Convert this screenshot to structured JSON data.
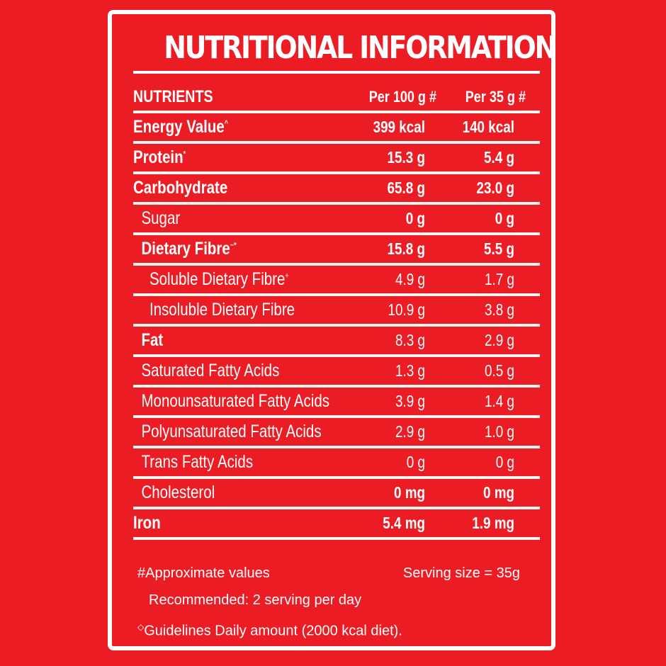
{
  "label": {
    "title": "NUTRITIONAL INFORMATION",
    "columns": {
      "nutrients": "NUTRIENTS",
      "per_100g": "Per 100 g #",
      "per_serving": "Per 35 g #"
    },
    "rows": [
      {
        "name": "Energy Value",
        "mark": "^",
        "per_100g": "399 kcal",
        "per_serving": "140 kcal",
        "style": "bold",
        "indent": 0
      },
      {
        "name": "Protein",
        "mark": "*",
        "per_100g": "15.3 g",
        "per_serving": "5.4 g",
        "style": "bold",
        "indent": 0
      },
      {
        "name": "Carbohydrate",
        "mark": "",
        "per_100g": "65.8 g",
        "per_serving": "23.0 g",
        "style": "bold",
        "indent": 0
      },
      {
        "name": "Sugar",
        "mark": "",
        "per_100g": "0 g",
        "per_serving": "0 g",
        "style": "regular",
        "indent": 1
      },
      {
        "name": "Dietary Fibre",
        "mark": "~*",
        "per_100g": "15.8 g",
        "per_serving": "5.5 g",
        "style": "bold",
        "indent": 1
      },
      {
        "name": "Soluble Dietary Fibre",
        "mark": "+",
        "per_100g": "4.9 g",
        "per_serving": "1.7 g",
        "style": "regular",
        "indent": 2
      },
      {
        "name": "Insoluble Dietary Fibre",
        "mark": "",
        "per_100g": "10.9 g",
        "per_serving": "3.8 g",
        "style": "regular",
        "indent": 2
      },
      {
        "name": "Fat",
        "mark": "",
        "per_100g": "8.3 g",
        "per_serving": "2.9 g",
        "style": "bold",
        "indent": 1
      },
      {
        "name": "Saturated Fatty Acids",
        "mark": "",
        "per_100g": "1.3 g",
        "per_serving": "0.5 g",
        "style": "regular",
        "indent": 1
      },
      {
        "name": "Monounsaturated Fatty Acids",
        "mark": "",
        "per_100g": "3.9 g",
        "per_serving": "1.4 g",
        "style": "regular",
        "indent": 1
      },
      {
        "name": "Polyunsaturated Fatty Acids",
        "mark": "",
        "per_100g": "2.9 g",
        "per_serving": "1.0 g",
        "style": "regular",
        "indent": 1
      },
      {
        "name": "Trans Fatty Acids",
        "mark": "",
        "per_100g": "0 g",
        "per_serving": "0 g",
        "style": "regular",
        "indent": 1
      },
      {
        "name": "Cholesterol",
        "mark": "",
        "per_100g": "0 mg",
        "per_serving": "0 mg",
        "style": "regular",
        "indent": 1
      },
      {
        "name": "Iron",
        "mark": "",
        "per_100g": "5.4 mg",
        "per_serving": "1.9 mg",
        "style": "bold",
        "indent": 0
      }
    ],
    "notes": {
      "approximate": "#Approximate values",
      "serving_size": "Serving  size = 35g",
      "recommended": "Recommended: 2 serving per day",
      "guidelines_mark": "◇",
      "guidelines": "Guidelines Daily amount (2000 kcal diet)."
    }
  },
  "colors": {
    "background": "#ec1c24",
    "text": "#ffffff",
    "border": "#ffffff"
  }
}
